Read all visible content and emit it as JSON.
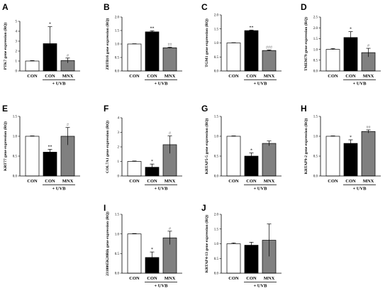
{
  "chart_data": [
    {
      "panel": "A",
      "type": "bar",
      "ylabel": "PTK7 gene expression (RQ)",
      "categories": [
        "CON",
        "CON",
        "MNX"
      ],
      "group_label": "+ UVB",
      "values": [
        1.0,
        2.75,
        1.05
      ],
      "errors": [
        0.05,
        1.7,
        0.25
      ],
      "significance": [
        "",
        "*",
        "#"
      ],
      "ylim": [
        0,
        5
      ],
      "yticks": [
        "0",
        "1",
        "2",
        "3",
        "4",
        "5"
      ]
    },
    {
      "panel": "B",
      "type": "bar",
      "ylabel": "ZBTB16 gene expression (RQ)",
      "categories": [
        "CON",
        "CON",
        "MNX"
      ],
      "group_label": "+ UVB",
      "values": [
        1.0,
        1.45,
        0.86
      ],
      "errors": [
        0.01,
        0.04,
        0.02
      ],
      "significance": [
        "",
        "**",
        "##"
      ],
      "ylim": [
        0,
        2.0
      ],
      "yticks": [
        "0.0",
        "0.5",
        "1.0",
        "1.5",
        "2.0"
      ]
    },
    {
      "panel": "C",
      "type": "bar",
      "ylabel": "TGM1 gene expression (RQ)",
      "categories": [
        "CON",
        "CON",
        "MNX"
      ],
      "group_label": "+ UVB",
      "values": [
        1.0,
        1.44,
        0.73
      ],
      "errors": [
        0.01,
        0.02,
        0.02
      ],
      "significance": [
        "",
        "**",
        "###"
      ],
      "ylim": [
        0,
        2.0
      ],
      "yticks": [
        "0.0",
        "0.5",
        "1.0",
        "1.5",
        "2.0"
      ]
    },
    {
      "panel": "D",
      "type": "bar",
      "ylabel": "TMEM79 gene expression (RQ)",
      "categories": [
        "CON",
        "CON",
        "MNX"
      ],
      "group_label": "+ UVB",
      "values": [
        1.0,
        1.55,
        0.85
      ],
      "errors": [
        0.04,
        0.27,
        0.2
      ],
      "significance": [
        "",
        "*",
        "#"
      ],
      "ylim": [
        0,
        2.5
      ],
      "yticks": [
        "0.0",
        "0.5",
        "1.0",
        "1.5",
        "2.0",
        "2.5"
      ]
    },
    {
      "panel": "E",
      "type": "bar",
      "ylabel": "KRT77 gene expression (RQ)",
      "categories": [
        "CON",
        "CON",
        "MNX"
      ],
      "group_label": "+ UVB",
      "values": [
        1.0,
        0.6,
        1.0
      ],
      "errors": [
        0.01,
        0.07,
        0.22
      ],
      "significance": [
        "",
        "**",
        "#"
      ],
      "ylim": [
        0,
        1.5
      ],
      "yticks": [
        "0.0",
        "0.5",
        "1.0",
        "1.5"
      ]
    },
    {
      "panel": "F",
      "type": "bar",
      "ylabel": "COL7A1 gene expression (RQ)",
      "categories": [
        "CON",
        "CON",
        "MNX"
      ],
      "group_label": "+ UVB",
      "values": [
        1.0,
        0.6,
        2.15
      ],
      "errors": [
        0.03,
        0.22,
        0.6
      ],
      "significance": [
        "",
        "*",
        "#"
      ],
      "ylim": [
        0,
        4
      ],
      "yticks": [
        "0",
        "1",
        "2",
        "3",
        "4"
      ]
    },
    {
      "panel": "G",
      "type": "bar",
      "ylabel": "KRTAP5-5 gene expression (RQ)",
      "categories": [
        "CON",
        "CON",
        "MNX"
      ],
      "group_label": "+ UVB",
      "values": [
        1.0,
        0.5,
        0.82
      ],
      "errors": [
        0.01,
        0.08,
        0.06
      ],
      "significance": [
        "",
        "*",
        ""
      ],
      "ylim": [
        0,
        1.5
      ],
      "yticks": [
        "0.0",
        "0.5",
        "1.0",
        "1.5"
      ]
    },
    {
      "panel": "H",
      "type": "bar",
      "ylabel": "KRTAP9-2 gene expression (RQ)",
      "categories": [
        "CON",
        "CON",
        "MNX"
      ],
      "group_label": "+ UVB",
      "values": [
        1.0,
        0.82,
        1.12
      ],
      "errors": [
        0.01,
        0.09,
        0.04
      ],
      "significance": [
        "",
        "*",
        "##"
      ],
      "ylim": [
        0,
        1.5
      ],
      "yticks": [
        "0.0",
        "0.5",
        "1.0",
        "1.5"
      ]
    },
    {
      "panel": "I",
      "type": "bar",
      "ylabel": "2310065K20Rik gene expression (RQ)",
      "categories": [
        "CON",
        "CON",
        "MNX"
      ],
      "group_label": "+ UVB",
      "values": [
        1.0,
        0.4,
        0.9
      ],
      "errors": [
        0.01,
        0.14,
        0.17
      ],
      "significance": [
        "",
        "*",
        "#"
      ],
      "ylim": [
        0,
        1.5
      ],
      "yticks": [
        "0.0",
        "0.5",
        "1.0",
        "1.5"
      ]
    },
    {
      "panel": "J",
      "type": "bar",
      "ylabel": "KRTAP4-13 gene expression (RQ)",
      "categories": [
        "CON",
        "CON",
        "MNX"
      ],
      "group_label": "+ UVB",
      "values": [
        1.0,
        0.95,
        1.12
      ],
      "errors": [
        0.03,
        0.1,
        0.55
      ],
      "significance": [
        "",
        "",
        ""
      ],
      "ylim": [
        0,
        2.0
      ],
      "yticks": [
        "0.0",
        "0.5",
        "1.0",
        "1.5",
        "2.0"
      ]
    }
  ],
  "colors": {
    "con": "#ffffff",
    "uvb_con": "#000000",
    "uvb_mnx": "#808080",
    "axis": "#000000",
    "sig_hash": "#888888"
  }
}
